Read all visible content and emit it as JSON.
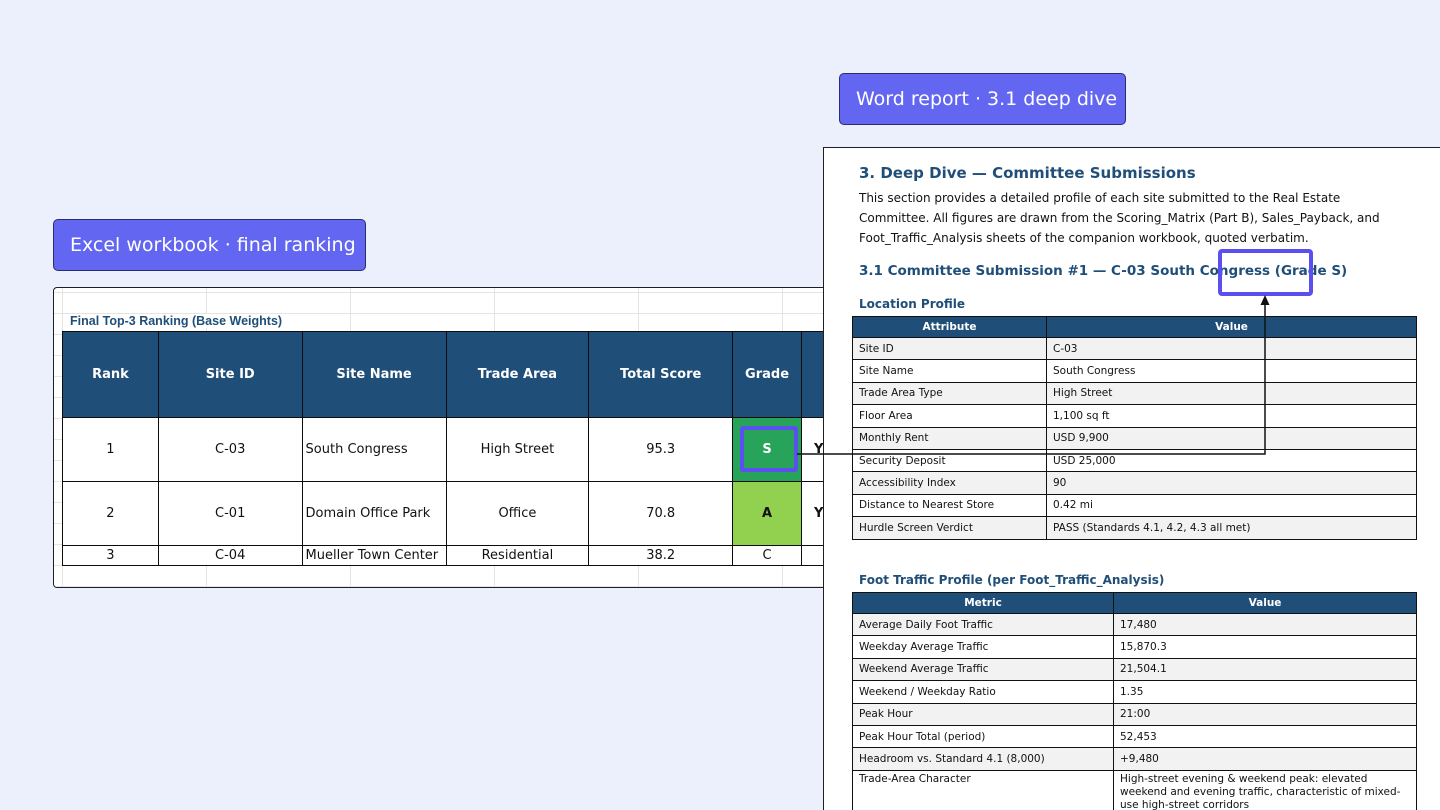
{
  "labels": {
    "excel": "Excel workbook · final ranking",
    "word": "Word report · 3.1 deep dive"
  },
  "excel": {
    "title": "Final Top-3 Ranking (Base Weights)",
    "headers": [
      "Rank",
      "Site ID",
      "Site Name",
      "Trade Area",
      "Total Score",
      "Grade"
    ],
    "rows": [
      {
        "rank": "1",
        "site_id": "C-03",
        "site_name": "South Congress",
        "trade_area": "High Street",
        "total_score": "95.3",
        "grade": "S",
        "next": "Y"
      },
      {
        "rank": "2",
        "site_id": "C-01",
        "site_name": "Domain Office Park",
        "trade_area": "Office",
        "total_score": "70.8",
        "grade": "A",
        "next": "Y"
      },
      {
        "rank": "3",
        "site_id": "C-04",
        "site_name": "Mueller Town Center",
        "trade_area": "Residential",
        "total_score": "38.2",
        "grade": "C",
        "next": ""
      }
    ],
    "colors": {
      "header": "#1f4e79",
      "grade_s": "#27a35a",
      "grade_a": "#92d050"
    }
  },
  "word": {
    "h1": "3. Deep Dive — Committee Submissions",
    "intro": "This section provides a detailed profile of each site submitted to the Real Estate Committee. All figures are drawn from the Scoring_Matrix (Part B), Sales_Payback, and Foot_Traffic_Analysis sheets of the companion workbook, quoted verbatim.",
    "h2": "3.1 Committee Submission #1 — C-03 South Congress (Grade S)",
    "location": {
      "title": "Location Profile",
      "headers": [
        "Attribute",
        "Value"
      ],
      "rows": [
        [
          "Site ID",
          "C-03"
        ],
        [
          "Site Name",
          "South Congress"
        ],
        [
          "Trade Area Type",
          "High Street"
        ],
        [
          "Floor Area",
          "1,100 sq ft"
        ],
        [
          "Monthly Rent",
          "USD 9,900"
        ],
        [
          "Security Deposit",
          "USD 25,000"
        ],
        [
          "Accessibility Index",
          "90"
        ],
        [
          "Distance to Nearest Store",
          "0.42 mi"
        ],
        [
          "Hurdle Screen Verdict",
          "PASS (Standards 4.1, 4.2, 4.3 all met)"
        ]
      ]
    },
    "foot_traffic": {
      "title": "Foot Traffic Profile (per Foot_Traffic_Analysis)",
      "headers": [
        "Metric",
        "Value"
      ],
      "rows": [
        [
          "Average Daily Foot Traffic",
          "17,480"
        ],
        [
          "Weekday Average Traffic",
          "15,870.3"
        ],
        [
          "Weekend Average Traffic",
          "21,504.1"
        ],
        [
          "Weekend / Weekday Ratio",
          "1.35"
        ],
        [
          "Peak Hour",
          "21:00"
        ],
        [
          "Peak Hour Total (period)",
          "52,453"
        ],
        [
          "Headroom vs. Standard 4.1 (8,000)",
          "+9,480"
        ],
        [
          "Trade-Area Character",
          "High-street evening & weekend peak: elevated weekend and evening traffic, characteristic of mixed-use high-street corridors"
        ]
      ]
    }
  }
}
